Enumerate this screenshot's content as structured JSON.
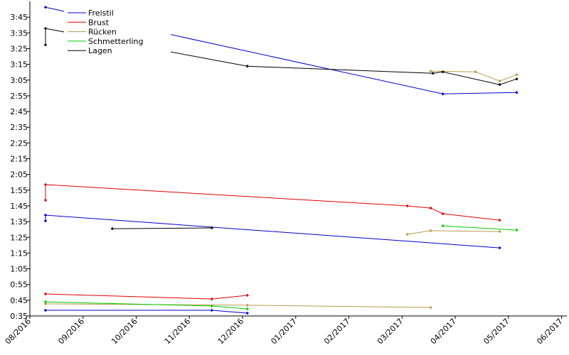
{
  "chart_data": {
    "type": "line",
    "xlim": [
      2016.5833,
      2017.425
    ],
    "ylim": [
      35,
      235
    ],
    "xticks": [
      {
        "value": 2016.5833,
        "label": "08/2016"
      },
      {
        "value": 2016.6667,
        "label": "09/2016"
      },
      {
        "value": 2016.75,
        "label": "10/2016"
      },
      {
        "value": 2016.8333,
        "label": "11/2016"
      },
      {
        "value": 2016.9167,
        "label": "12/2016"
      },
      {
        "value": 2017.0,
        "label": "01/2017"
      },
      {
        "value": 2017.0833,
        "label": "02/2017"
      },
      {
        "value": 2017.1667,
        "label": "03/2017"
      },
      {
        "value": 2017.25,
        "label": "04/2017"
      },
      {
        "value": 2017.3333,
        "label": "05/2017"
      },
      {
        "value": 2017.4167,
        "label": "06/2017"
      }
    ],
    "yticks": [
      {
        "value": 35,
        "label": "0:35"
      },
      {
        "value": 45,
        "label": "0:45"
      },
      {
        "value": 55,
        "label": "0:55"
      },
      {
        "value": 65,
        "label": "1:05"
      },
      {
        "value": 75,
        "label": "1:15"
      },
      {
        "value": 85,
        "label": "1:25"
      },
      {
        "value": 95,
        "label": "1:35"
      },
      {
        "value": 105,
        "label": "1:45"
      },
      {
        "value": 115,
        "label": "1:55"
      },
      {
        "value": 125,
        "label": "2:05"
      },
      {
        "value": 135,
        "label": "2:15"
      },
      {
        "value": 145,
        "label": "2:25"
      },
      {
        "value": 155,
        "label": "2:35"
      },
      {
        "value": 165,
        "label": "2:45"
      },
      {
        "value": 175,
        "label": "2:55"
      },
      {
        "value": 185,
        "label": "3:05"
      },
      {
        "value": 195,
        "label": "3:15"
      },
      {
        "value": 205,
        "label": "3:25"
      },
      {
        "value": 215,
        "label": "3:35"
      },
      {
        "value": 225,
        "label": "3:45"
      }
    ],
    "grid": false,
    "legend": "upper left",
    "series": [
      {
        "name": "Freistil",
        "color": "#0000cc",
        "x": [
          2016.6078,
          2017.2306,
          2017.3464,
          null,
          2016.6078,
          2016.6078,
          2017.3197,
          null,
          2016.6078,
          2016.8685,
          2016.9242
        ],
        "values": [
          231.3,
          176.2,
          177.1,
          null,
          95.5,
          99.1,
          78.3,
          null,
          38.6,
          38.6,
          36.8
        ]
      },
      {
        "name": "Brust",
        "color": "#dd0000",
        "x": [
          2016.6078,
          2016.6078,
          2017.1749,
          2017.2116,
          2017.2306,
          2017.3197,
          null,
          2016.6078,
          2016.8685,
          2016.9242
        ],
        "values": [
          108.6,
          118.5,
          105.0,
          103.6,
          100.0,
          95.9,
          null,
          49.0,
          45.8,
          48.1
        ]
      },
      {
        "name": "Rücken",
        "color": "#b89a4c",
        "x": [
          2017.2116,
          2017.2818,
          2017.3197,
          2017.3464,
          null,
          2017.1749,
          2017.2116,
          2017.3197,
          null,
          2016.6078,
          2016.9242,
          2017.2116
        ],
        "values": [
          190.7,
          190.2,
          184.4,
          188.4,
          null,
          86.9,
          89.2,
          88.7,
          null,
          42.7,
          41.8,
          40.4
        ]
      },
      {
        "name": "Schmetterling",
        "color": "#00cc00",
        "x": [
          2017.2306,
          2017.3464,
          null,
          2016.6078,
          2016.8685,
          2016.9242
        ],
        "values": [
          92.3,
          89.6,
          null,
          44.0,
          41.3,
          39.5
        ]
      },
      {
        "name": "Lagen",
        "color": "#000000",
        "x": [
          2016.6078,
          2016.6078,
          2016.9242,
          2017.215,
          2017.2306,
          2017.3197,
          2017.3464,
          null,
          2016.7125,
          2016.8685
        ],
        "values": [
          207.4,
          217.8,
          193.8,
          189.3,
          190.2,
          182.1,
          185.7,
          null,
          90.5,
          91.0
        ]
      }
    ]
  }
}
